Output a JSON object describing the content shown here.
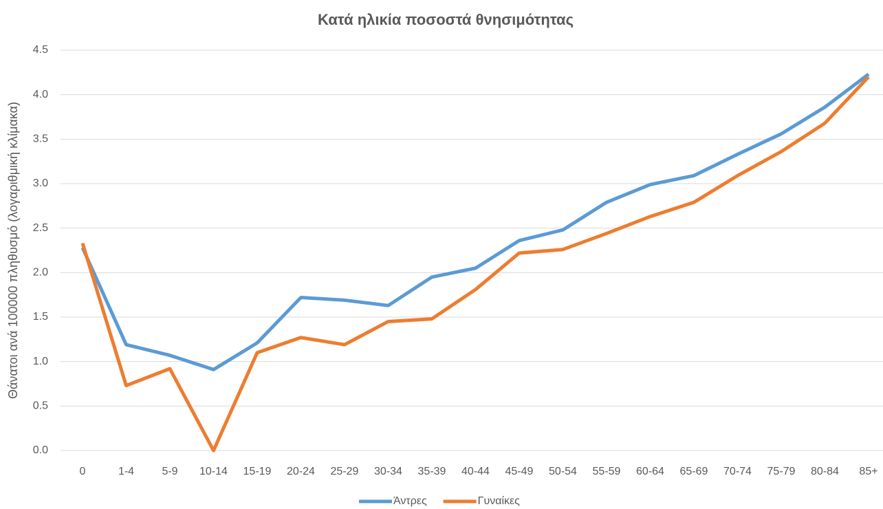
{
  "chart_data": {
    "type": "line",
    "title": "Κατά ηλικία ποσοστά θνησιμότητας",
    "y_label": "Θάνατοι ανά 100000 πληθυσμό (λογαριθμική κλίμακα)",
    "categories": [
      "0",
      "1-4",
      "5-9",
      "10-14",
      "15-19",
      "20-24",
      "25-29",
      "30-34",
      "35-39",
      "40-44",
      "45-49",
      "50-54",
      "55-59",
      "60-64",
      "65-69",
      "70-74",
      "75-79",
      "80-84",
      "85+"
    ],
    "series": [
      {
        "name": "Άντρες",
        "color": "#5b9bd5",
        "values": [
          2.28,
          1.19,
          1.07,
          0.91,
          1.21,
          1.72,
          1.69,
          1.63,
          1.95,
          2.05,
          2.36,
          2.48,
          2.79,
          2.99,
          3.09,
          3.33,
          3.56,
          3.86,
          4.23
        ]
      },
      {
        "name": "Γυναίκες",
        "color": "#ed7d31",
        "values": [
          2.33,
          0.73,
          0.92,
          0.0,
          1.1,
          1.27,
          1.19,
          1.45,
          1.48,
          1.81,
          2.22,
          2.26,
          2.44,
          2.63,
          2.79,
          3.09,
          3.36,
          3.68,
          4.2
        ]
      }
    ],
    "ylim": [
      0,
      4.5
    ],
    "yticks": [
      {
        "value": 0,
        "label": "0.0"
      },
      0.5,
      {
        "value": 1,
        "label": "1.0"
      },
      1.5,
      {
        "value": 2,
        "label": "2.0"
      },
      2.5,
      {
        "value": 3,
        "label": "3.0"
      },
      3.5,
      {
        "value": 4,
        "label": "4.0"
      },
      4.5
    ],
    "grid": true,
    "legend": "bottom"
  }
}
